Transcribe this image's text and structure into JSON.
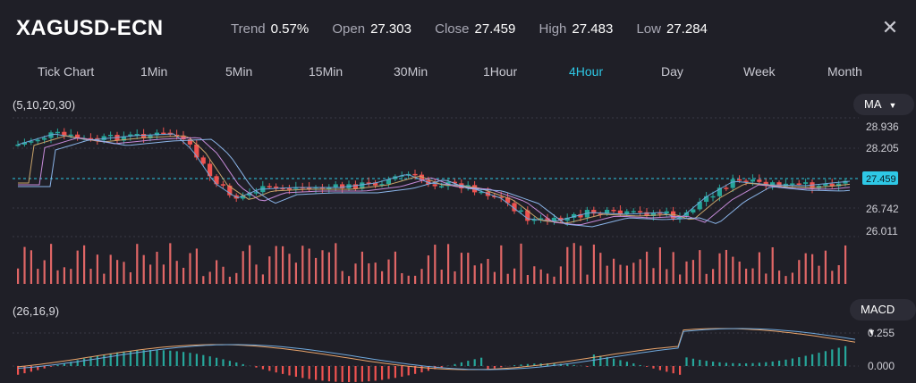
{
  "header": {
    "symbol": "XAGUSD-ECN",
    "stats": [
      {
        "label": "Trend",
        "value": "0.57%"
      },
      {
        "label": "Open",
        "value": "27.303"
      },
      {
        "label": "Close",
        "value": "27.459"
      },
      {
        "label": "High",
        "value": "27.483"
      },
      {
        "label": "Low",
        "value": "27.284"
      }
    ],
    "close_icon": "close-icon"
  },
  "timeframes": [
    "Tick Chart",
    "1Min",
    "5Min",
    "15Min",
    "30Min",
    "1Hour",
    "4Hour",
    "Day",
    "Week",
    "Month"
  ],
  "active_timeframe": "4Hour",
  "main_panel": {
    "indicator_params": "(5,10,20,30)",
    "indicator_select": "MA",
    "price_ticks": [
      "28.936",
      "28.205",
      "26.742",
      "26.011"
    ],
    "current_price": "27.459"
  },
  "macd_panel": {
    "indicator_params": "(26,16,9)",
    "indicator_select": "MACD",
    "ticks": [
      "0.255",
      "0.000"
    ]
  },
  "colors": {
    "up": "#26a69a",
    "down": "#ef5350",
    "accent": "#2ec8e6",
    "background": "#1f1f27"
  }
}
